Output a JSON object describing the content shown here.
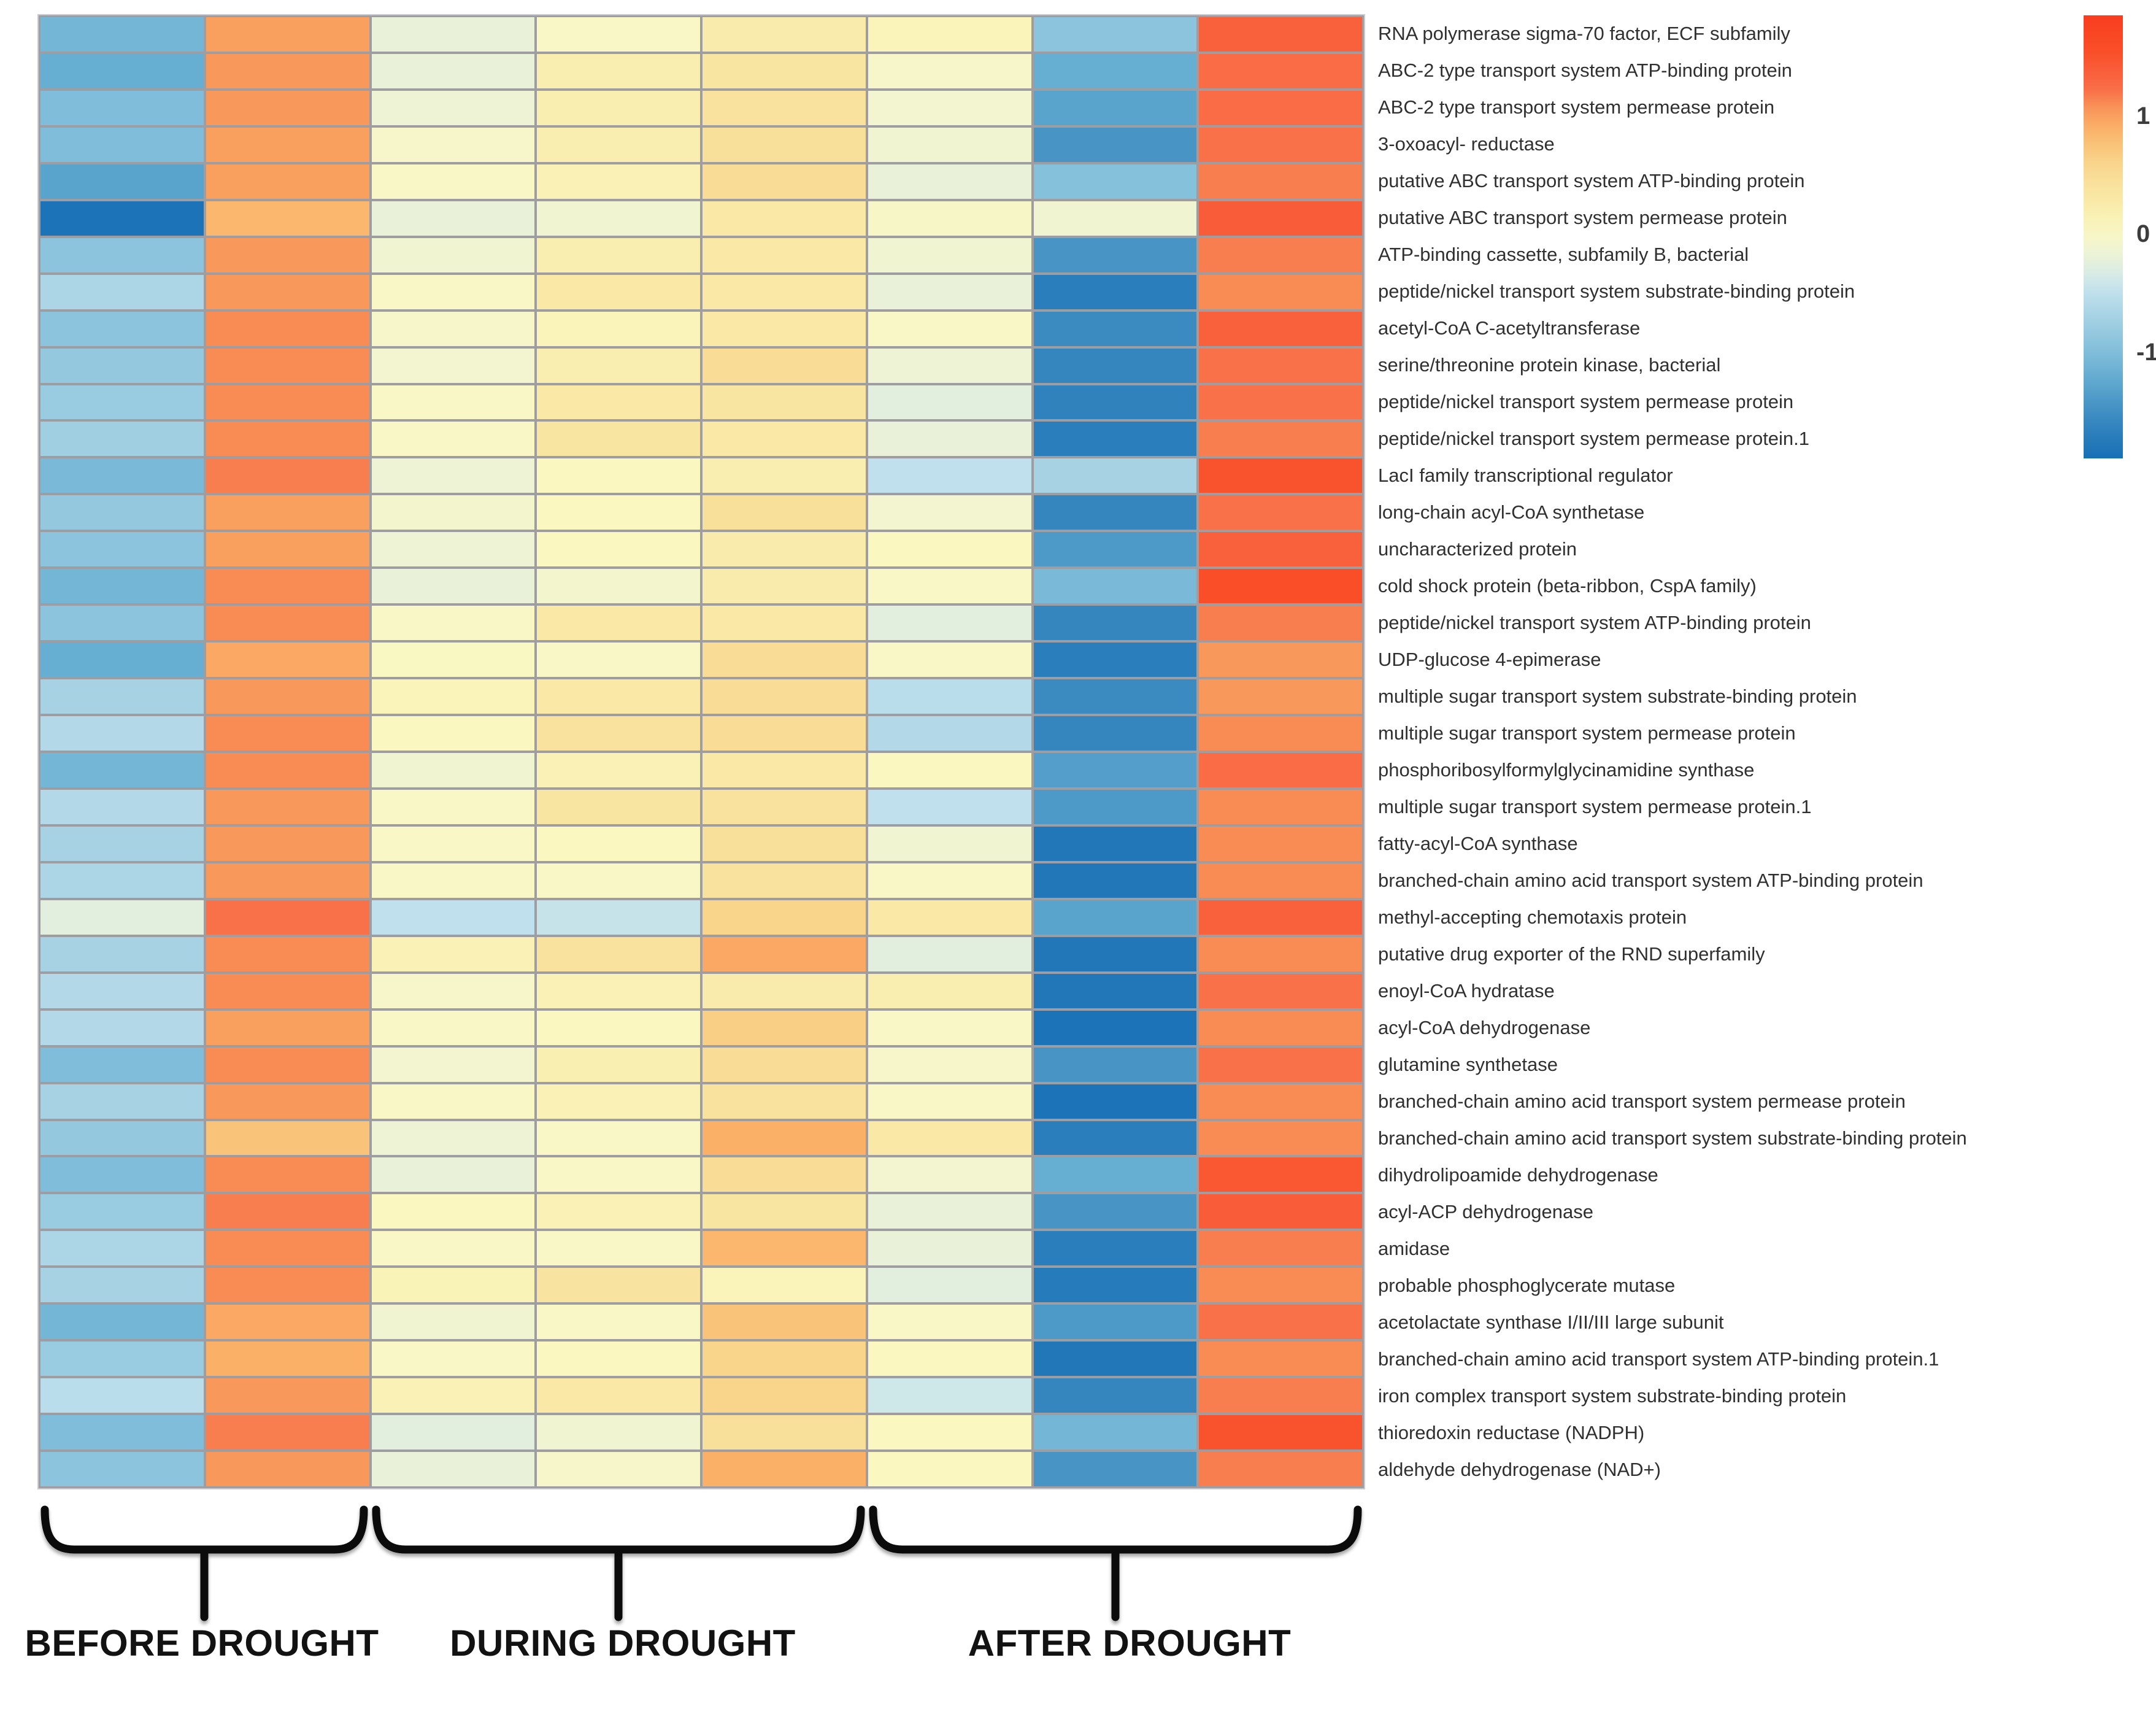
{
  "figure": {
    "description": "Gene expression heatmap across drought phases",
    "background_color": "#ffffff",
    "gridline_color": "#9e9ea2"
  },
  "chart_data": {
    "type": "heatmap",
    "title": "",
    "xlabel": "",
    "ylabel": "",
    "col_groups": [
      {
        "label": "BEFORE DROUGHT",
        "cols": 2
      },
      {
        "label": "DURING DROUGHT",
        "cols": 3
      },
      {
        "label": "AFTER DROUGHT",
        "cols": 3
      }
    ],
    "rows": [
      "RNA polymerase sigma-70 factor, ECF subfamily",
      "ABC-2 type transport system ATP-binding protein",
      "ABC-2 type transport system permease protein",
      "3-oxoacyl- reductase",
      "putative ABC transport system ATP-binding protein",
      "putative ABC transport system permease protein",
      "ATP-binding cassette, subfamily B, bacterial",
      "peptide/nickel transport system substrate-binding protein",
      "acetyl-CoA C-acetyltransferase",
      "serine/threonine protein kinase, bacterial",
      "peptide/nickel transport system permease protein",
      "peptide/nickel transport system permease protein.1",
      "LacI family transcriptional regulator",
      "long-chain acyl-CoA synthetase",
      "uncharacterized protein",
      "cold shock protein (beta-ribbon, CspA family)",
      "peptide/nickel transport system ATP-binding protein",
      "UDP-glucose 4-epimerase",
      "multiple sugar transport system substrate-binding protein",
      "multiple sugar transport system permease protein",
      "phosphoribosylformylglycinamidine synthase",
      "multiple sugar transport system permease protein.1",
      "fatty-acyl-CoA synthase",
      "branched-chain amino acid transport system ATP-binding protein",
      "methyl-accepting chemotaxis protein",
      "putative drug exporter of the RND superfamily",
      "enoyl-CoA hydratase",
      "acyl-CoA dehydrogenase",
      "glutamine synthetase",
      "branched-chain amino acid transport system permease protein",
      "branched-chain amino acid transport system substrate-binding protein",
      "dihydrolipoamide dehydrogenase",
      "acyl-ACP dehydrogenase",
      "amidase",
      "probable phosphoglycerate mutase",
      "acetolactate synthase I/II/III large subunit",
      "branched-chain amino acid transport system ATP-binding protein.1",
      "iron complex transport system substrate-binding protein",
      "thioredoxin reductase (NADPH)",
      "aldehyde dehydrogenase (NAD+)"
    ],
    "values": [
      [
        -1.1,
        1.0,
        -0.2,
        0.0,
        0.25,
        0.1,
        -0.9,
        1.35
      ],
      [
        -1.2,
        1.05,
        -0.2,
        0.2,
        0.35,
        -0.05,
        -1.2,
        1.25
      ],
      [
        -1.0,
        1.05,
        -0.15,
        0.2,
        0.4,
        -0.1,
        -1.3,
        1.25
      ],
      [
        -1.0,
        1.0,
        -0.05,
        0.2,
        0.45,
        -0.12,
        -1.45,
        1.2
      ],
      [
        -1.3,
        1.0,
        0.0,
        0.15,
        0.5,
        -0.2,
        -0.95,
        1.15
      ],
      [
        -1.85,
        0.85,
        -0.2,
        -0.12,
        0.3,
        -0.02,
        -0.12,
        1.4
      ],
      [
        -0.9,
        1.05,
        -0.12,
        0.2,
        0.3,
        -0.12,
        -1.45,
        1.15
      ],
      [
        -0.65,
        1.05,
        0.0,
        0.3,
        0.3,
        -0.2,
        -1.7,
        1.1
      ],
      [
        -0.9,
        1.1,
        -0.05,
        0.1,
        0.3,
        0.0,
        -1.55,
        1.35
      ],
      [
        -0.85,
        1.1,
        -0.1,
        0.2,
        0.5,
        -0.15,
        -1.6,
        1.2
      ],
      [
        -0.8,
        1.1,
        0.0,
        0.3,
        0.35,
        -0.25,
        -1.65,
        1.2
      ],
      [
        -0.75,
        1.1,
        0.0,
        0.35,
        0.3,
        -0.2,
        -1.7,
        1.15
      ],
      [
        -1.05,
        1.15,
        -0.15,
        0.05,
        0.2,
        -0.5,
        -0.7,
        1.5
      ],
      [
        -0.85,
        1.0,
        -0.08,
        0.05,
        0.45,
        -0.1,
        -1.6,
        1.2
      ],
      [
        -0.9,
        1.0,
        -0.15,
        0.05,
        0.25,
        0.05,
        -1.4,
        1.35
      ],
      [
        -1.1,
        1.1,
        -0.2,
        -0.08,
        0.25,
        0.0,
        -1.05,
        1.55
      ],
      [
        -0.9,
        1.1,
        0.0,
        0.3,
        0.3,
        -0.25,
        -1.6,
        1.15
      ],
      [
        -1.2,
        0.95,
        0.03,
        0.0,
        0.5,
        0.0,
        -1.7,
        1.05
      ],
      [
        -0.7,
        1.05,
        0.1,
        0.3,
        0.5,
        -0.55,
        -1.55,
        1.05
      ],
      [
        -0.6,
        1.1,
        0.05,
        0.4,
        0.5,
        -0.6,
        -1.6,
        1.1
      ],
      [
        -1.1,
        1.1,
        -0.12,
        0.15,
        0.3,
        0.05,
        -1.35,
        1.25
      ],
      [
        -0.6,
        1.05,
        0.0,
        0.35,
        0.4,
        -0.5,
        -1.4,
        1.1
      ],
      [
        -0.7,
        1.05,
        0.0,
        0.05,
        0.45,
        -0.12,
        -1.8,
        1.1
      ],
      [
        -0.65,
        1.05,
        0.0,
        0.0,
        0.4,
        0.0,
        -1.8,
        1.1
      ],
      [
        -0.25,
        1.2,
        -0.5,
        -0.45,
        0.6,
        0.3,
        -1.3,
        1.35
      ],
      [
        -0.7,
        1.1,
        0.15,
        0.4,
        0.95,
        -0.25,
        -1.8,
        1.1
      ],
      [
        -0.6,
        1.1,
        -0.05,
        0.15,
        0.25,
        0.2,
        -1.8,
        1.2
      ],
      [
        -0.6,
        1.0,
        0.0,
        0.05,
        0.65,
        0.0,
        -1.85,
        1.1
      ],
      [
        -1.0,
        1.1,
        -0.1,
        0.18,
        0.5,
        -0.05,
        -1.45,
        1.2
      ],
      [
        -0.7,
        1.05,
        0.0,
        0.15,
        0.4,
        0.0,
        -1.85,
        1.1
      ],
      [
        -0.85,
        0.75,
        -0.15,
        0.0,
        0.9,
        0.3,
        -1.7,
        1.1
      ],
      [
        -1.0,
        1.1,
        -0.2,
        0.0,
        0.5,
        -0.1,
        -1.2,
        1.45
      ],
      [
        -0.8,
        1.15,
        0.05,
        0.15,
        0.35,
        -0.2,
        -1.45,
        1.4
      ],
      [
        -0.65,
        1.1,
        0.0,
        0.0,
        0.85,
        -0.2,
        -1.7,
        1.15
      ],
      [
        -0.7,
        1.1,
        0.12,
        0.38,
        0.1,
        -0.25,
        -1.75,
        1.1
      ],
      [
        -1.1,
        0.95,
        -0.12,
        0.0,
        0.75,
        0.0,
        -1.4,
        1.2
      ],
      [
        -0.8,
        0.9,
        0.0,
        0.05,
        0.6,
        0.05,
        -1.8,
        1.1
      ],
      [
        -0.55,
        1.05,
        0.15,
        0.3,
        0.6,
        -0.4,
        -1.6,
        1.15
      ],
      [
        -1.0,
        1.15,
        -0.25,
        -0.12,
        0.45,
        0.05,
        -1.1,
        1.5
      ],
      [
        -0.9,
        1.05,
        -0.2,
        -0.05,
        0.9,
        0.05,
        -1.45,
        1.15
      ]
    ],
    "legend": {
      "orientation": "vertical",
      "domain_top": 1.85,
      "domain_bottom": -1.9,
      "ticks": [
        {
          "label": "1",
          "value": 1
        },
        {
          "label": "0",
          "value": 0
        },
        {
          "label": "-1",
          "value": -1
        }
      ]
    },
    "colorscale": [
      {
        "v": -1.9,
        "c": "#176FB5"
      },
      {
        "v": -1.6,
        "c": "#3586BF"
      },
      {
        "v": -1.4,
        "c": "#4D99C7"
      },
      {
        "v": -1.2,
        "c": "#66AED2"
      },
      {
        "v": -1.0,
        "c": "#80BDDA"
      },
      {
        "v": -0.7,
        "c": "#A6D2E4"
      },
      {
        "v": -0.5,
        "c": "#BFE0EC"
      },
      {
        "v": -0.35,
        "c": "#D6EAE7"
      },
      {
        "v": -0.2,
        "c": "#E9F2D9"
      },
      {
        "v": -0.05,
        "c": "#F6F6CA"
      },
      {
        "v": 0.05,
        "c": "#FAF7C0"
      },
      {
        "v": 0.2,
        "c": "#F9EEAF"
      },
      {
        "v": 0.35,
        "c": "#F9E5A2"
      },
      {
        "v": 0.5,
        "c": "#F9DD96"
      },
      {
        "v": 0.7,
        "c": "#F9CA7F"
      },
      {
        "v": 0.9,
        "c": "#FAB067"
      },
      {
        "v": 1.05,
        "c": "#F9985B"
      },
      {
        "v": 1.2,
        "c": "#F97149"
      },
      {
        "v": 1.35,
        "c": "#F9613D"
      },
      {
        "v": 1.55,
        "c": "#F94E28"
      },
      {
        "v": 1.9,
        "c": "#F93A1D"
      }
    ]
  }
}
